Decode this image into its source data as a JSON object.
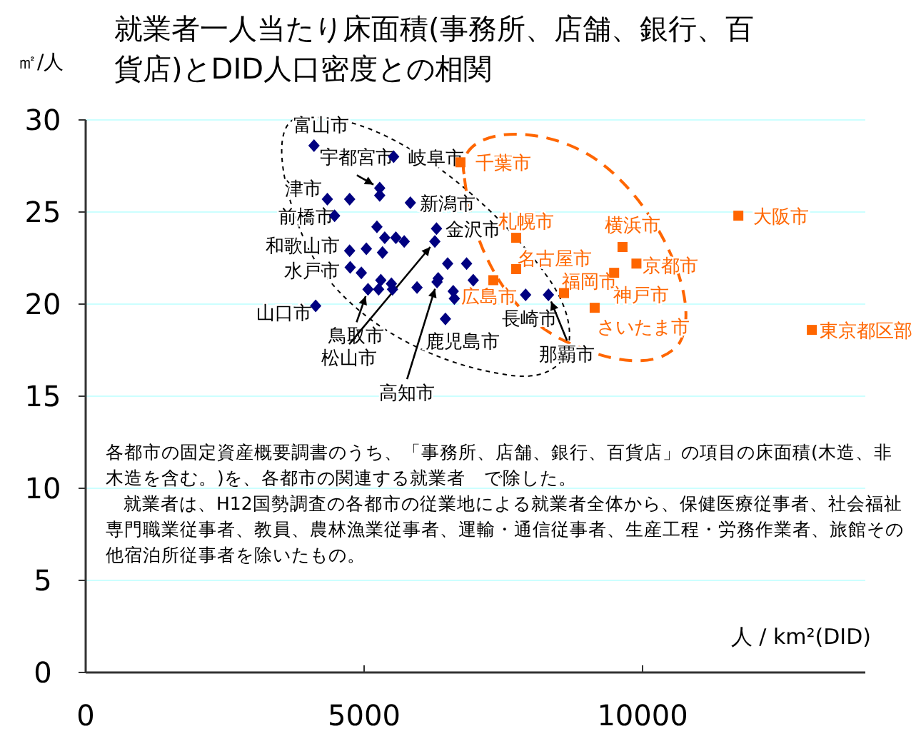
{
  "chart_data": {
    "type": "scatter",
    "title": "就業者一人当たり床面積(事務所、店舗、銀行、百貨店)とDID人口密度との相関",
    "xlabel": "人 / km²(DID)",
    "ylabel": "㎡/人",
    "xlim": [
      0,
      14000
    ],
    "ylim": [
      0,
      30
    ],
    "xticks": [
      0,
      5000,
      10000
    ],
    "yticks": [
      0,
      5,
      10,
      15,
      20,
      25,
      30
    ],
    "grid": "y",
    "series": [
      {
        "color": "#000080",
        "marker": "diamond",
        "x": [
          4100,
          5530,
          5280,
          5280,
          4340,
          4740,
          5830,
          4470,
          5230,
          6300,
          5370,
          5570,
          5720,
          6270,
          5040,
          4740,
          5330,
          6500,
          6840,
          4750,
          4950,
          5300,
          5490,
          6330,
          6310,
          6960,
          5950,
          5070,
          5260,
          5510,
          6600,
          6620,
          7900,
          8310,
          4130,
          6460
        ],
        "values": [
          28.6,
          28.0,
          26.3,
          25.9,
          25.7,
          25.7,
          25.5,
          24.8,
          24.2,
          24.1,
          23.6,
          23.6,
          23.4,
          23.4,
          23.0,
          22.9,
          22.8,
          22.2,
          22.2,
          22.0,
          21.7,
          21.3,
          21.1,
          21.4,
          21.2,
          21.3,
          20.9,
          20.8,
          20.8,
          20.8,
          20.7,
          20.3,
          20.5,
          20.5,
          19.9,
          19.2
        ]
      },
      {
        "color": "#ff6600",
        "marker": "square",
        "x": [
          6730,
          7730,
          7730,
          7320,
          9490,
          9640,
          9890,
          8590,
          9140,
          11720,
          13040
        ],
        "values": [
          27.7,
          23.6,
          21.9,
          21.3,
          21.7,
          23.1,
          22.2,
          20.6,
          19.8,
          24.8,
          18.6
        ]
      }
    ],
    "annotations": [
      {
        "text": "富山市",
        "x": 4100,
        "y": 28.6
      },
      {
        "text": "岐阜市",
        "x": 5530,
        "y": 28.0
      },
      {
        "text": "宇都宮市",
        "x": 5280,
        "y": 26.3
      },
      {
        "text": "津市",
        "x": 4340,
        "y": 25.7
      },
      {
        "text": "前橋市",
        "x": 4470,
        "y": 24.8
      },
      {
        "text": "新潟市",
        "x": 5830,
        "y": 25.5
      },
      {
        "text": "金沢市",
        "x": 6300,
        "y": 24.1
      },
      {
        "text": "和歌山市",
        "x": 4740,
        "y": 22.9
      },
      {
        "text": "水戸市",
        "x": 4750,
        "y": 22.0
      },
      {
        "text": "山口市",
        "x": 4130,
        "y": 19.9
      },
      {
        "text": "鳥取市",
        "x": 5070,
        "y": 20.8
      },
      {
        "text": "松山市",
        "x": 6270,
        "y": 23.4
      },
      {
        "text": "高知市",
        "x": 6310,
        "y": 21.2
      },
      {
        "text": "鹿児島市",
        "x": 6460,
        "y": 19.2
      },
      {
        "text": "長崎市",
        "x": 7900,
        "y": 20.5
      },
      {
        "text": "那覇市",
        "x": 8310,
        "y": 20.5
      },
      {
        "text": "千葉市",
        "x": 6730,
        "y": 27.7
      },
      {
        "text": "札幌市",
        "x": 7730,
        "y": 23.6
      },
      {
        "text": "名古屋市",
        "x": 7730,
        "y": 21.9
      },
      {
        "text": "広島市",
        "x": 7320,
        "y": 21.3
      },
      {
        "text": "福岡市",
        "x": 8590,
        "y": 20.6
      },
      {
        "text": "横浜市",
        "x": 9640,
        "y": 23.1
      },
      {
        "text": "京都市",
        "x": 9890,
        "y": 22.2
      },
      {
        "text": "神戸市",
        "x": 9490,
        "y": 21.7
      },
      {
        "text": "さいたま市",
        "x": 9140,
        "y": 19.8
      },
      {
        "text": "大阪市",
        "x": 11720,
        "y": 24.8
      },
      {
        "text": "東京都区部",
        "x": 13040,
        "y": 18.6
      },
      "各都市の固定資産概要調書のうち、「事務所、店舗、銀行、百貨店」の項目の床面積(木造、非木造を含む。)を、各都市の関連する就業者　で除した。",
      "就業者は、H12国勢調査の各都市の従業地による就業者全体から、保健医療従事者、社会福祉専門職業従事者、教員、農林漁業従事者、運輸・通信従事者、生産工程・労務作業者、旅館その他宿泊所従事者を除いたもの。"
    ]
  }
}
